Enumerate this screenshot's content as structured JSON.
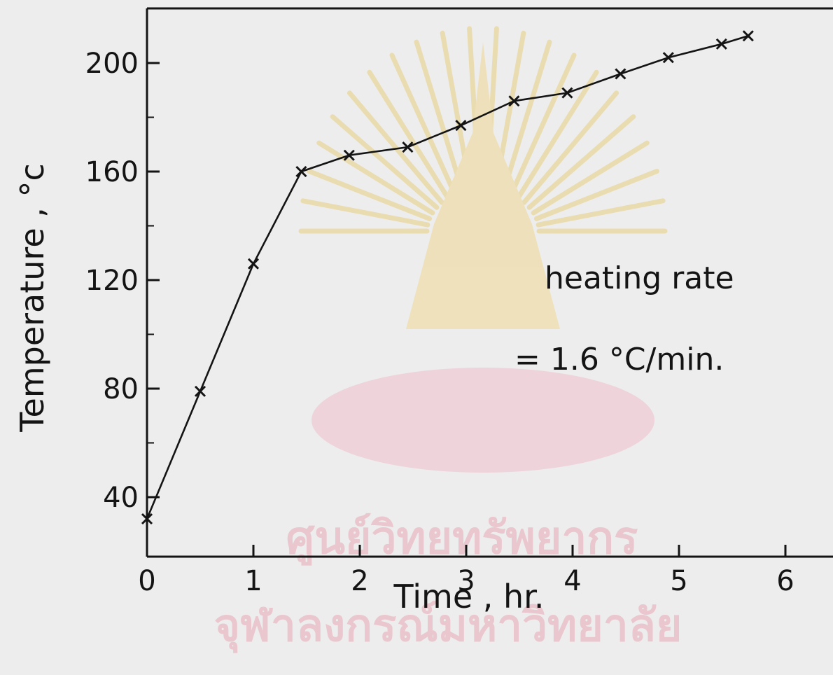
{
  "chart_data": {
    "type": "line",
    "title": "",
    "xlabel": "Time , hr.",
    "ylabel": "Temperature , °c",
    "xlim": [
      0,
      6.5
    ],
    "ylim": [
      20,
      220
    ],
    "x_ticks": [
      0,
      1,
      2,
      3,
      4,
      5,
      6
    ],
    "x_tick_labels": [
      "0",
      "1",
      "2",
      "3",
      "4",
      "5",
      "6"
    ],
    "y_ticks": [
      40,
      80,
      120,
      160,
      200
    ],
    "y_tick_labels": [
      "40",
      "80",
      "120",
      "160",
      "200"
    ],
    "grid": false,
    "marker": "x",
    "series": [
      {
        "x": [
          0,
          0.5,
          1.0,
          1.45,
          1.9,
          2.45,
          2.95,
          3.45,
          3.95,
          4.45,
          4.9,
          5.4,
          5.65
        ],
        "y": [
          32,
          79,
          126,
          160,
          166,
          169,
          177,
          186,
          189,
          196,
          202,
          207,
          210
        ]
      }
    ],
    "annotations": {
      "line1": "heating rate",
      "line2": "= 1.6 °C/min."
    }
  },
  "watermark": {
    "line1": "ศูนย์วิทยทรัพยากร",
    "line2": "จุฬาลงกรณ์มหาวิทยาลัย"
  },
  "colors": {
    "background": "#ededed",
    "ink": "#141414",
    "watermark_gold": "#e8c96a",
    "watermark_pink": "#e8a7b5"
  }
}
